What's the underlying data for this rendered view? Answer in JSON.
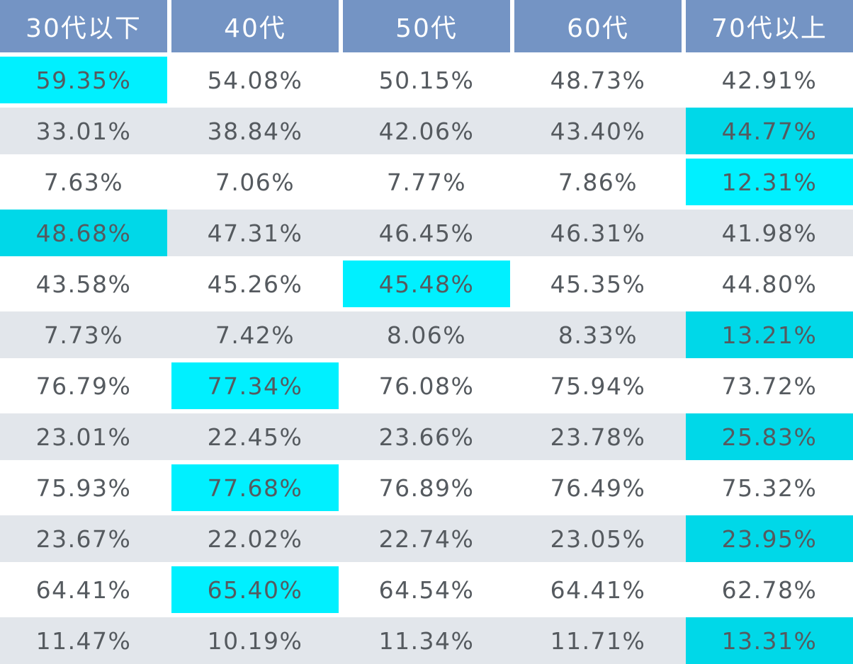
{
  "table": {
    "headers": [
      "30代以下",
      "40代",
      "50代",
      "60代",
      "70代以上"
    ],
    "rows": [
      [
        "59.35%",
        "54.08%",
        "50.15%",
        "48.73%",
        "42.91%"
      ],
      [
        "33.01%",
        "38.84%",
        "42.06%",
        "43.40%",
        "44.77%"
      ],
      [
        "7.63%",
        "7.06%",
        "7.77%",
        "7.86%",
        "12.31%"
      ],
      [
        "48.68%",
        "47.31%",
        "46.45%",
        "46.31%",
        "41.98%"
      ],
      [
        "43.58%",
        "45.26%",
        "45.48%",
        "45.35%",
        "44.80%"
      ],
      [
        "7.73%",
        "7.42%",
        "8.06%",
        "8.33%",
        "13.21%"
      ],
      [
        "76.79%",
        "77.34%",
        "76.08%",
        "75.94%",
        "73.72%"
      ],
      [
        "23.01%",
        "22.45%",
        "23.66%",
        "23.78%",
        "25.83%"
      ],
      [
        "75.93%",
        "77.68%",
        "76.89%",
        "76.49%",
        "75.32%"
      ],
      [
        "23.67%",
        "22.02%",
        "22.74%",
        "23.05%",
        "23.95%"
      ],
      [
        "64.41%",
        "65.40%",
        "64.54%",
        "64.41%",
        "62.78%"
      ],
      [
        "11.47%",
        "10.19%",
        "11.34%",
        "11.71%",
        "13.31%"
      ]
    ],
    "highlights": [
      {
        "row": 0,
        "col": 0,
        "color": "#00f0ff"
      },
      {
        "row": 1,
        "col": 4,
        "color": "#00d8e8"
      },
      {
        "row": 2,
        "col": 4,
        "color": "#00f0ff"
      },
      {
        "row": 3,
        "col": 0,
        "color": "#00d8e8"
      },
      {
        "row": 4,
        "col": 2,
        "color": "#00f0ff"
      },
      {
        "row": 5,
        "col": 4,
        "color": "#00d8e8"
      },
      {
        "row": 6,
        "col": 1,
        "color": "#00f0ff"
      },
      {
        "row": 7,
        "col": 4,
        "color": "#00d8e8"
      },
      {
        "row": 8,
        "col": 1,
        "color": "#00f0ff"
      },
      {
        "row": 9,
        "col": 4,
        "color": "#00d8e8"
      },
      {
        "row": 10,
        "col": 1,
        "color": "#00f0ff"
      },
      {
        "row": 11,
        "col": 4,
        "color": "#00d8e8"
      }
    ],
    "colors": {
      "header_bg": "#7494c4",
      "header_text": "#ffffff",
      "row_odd": "#ffffff",
      "row_even": "#e2e6eb",
      "cell_text": "#555a5f"
    }
  }
}
